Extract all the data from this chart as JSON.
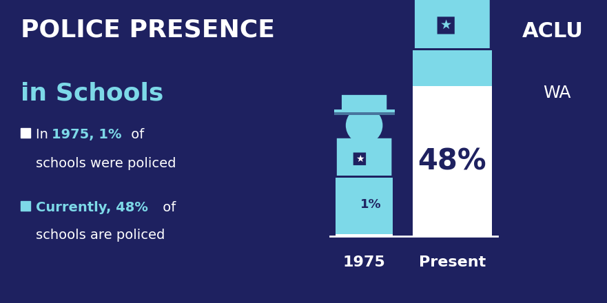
{
  "bg_color": "#1e2160",
  "light_blue": "#7dd9e8",
  "white": "#ffffff",
  "dark_navy": "#1e2160",
  "title_line1": "POLICE PRESENCE",
  "title_line2": "in Schools",
  "label1": "1975",
  "label2": "Present",
  "aclu_line1": "ACLU",
  "aclu_line2": "WA",
  "bar1_pct": "1%",
  "bar2_pct": "48%",
  "figw": 8.81,
  "figh": 4.4,
  "dpi": 100
}
